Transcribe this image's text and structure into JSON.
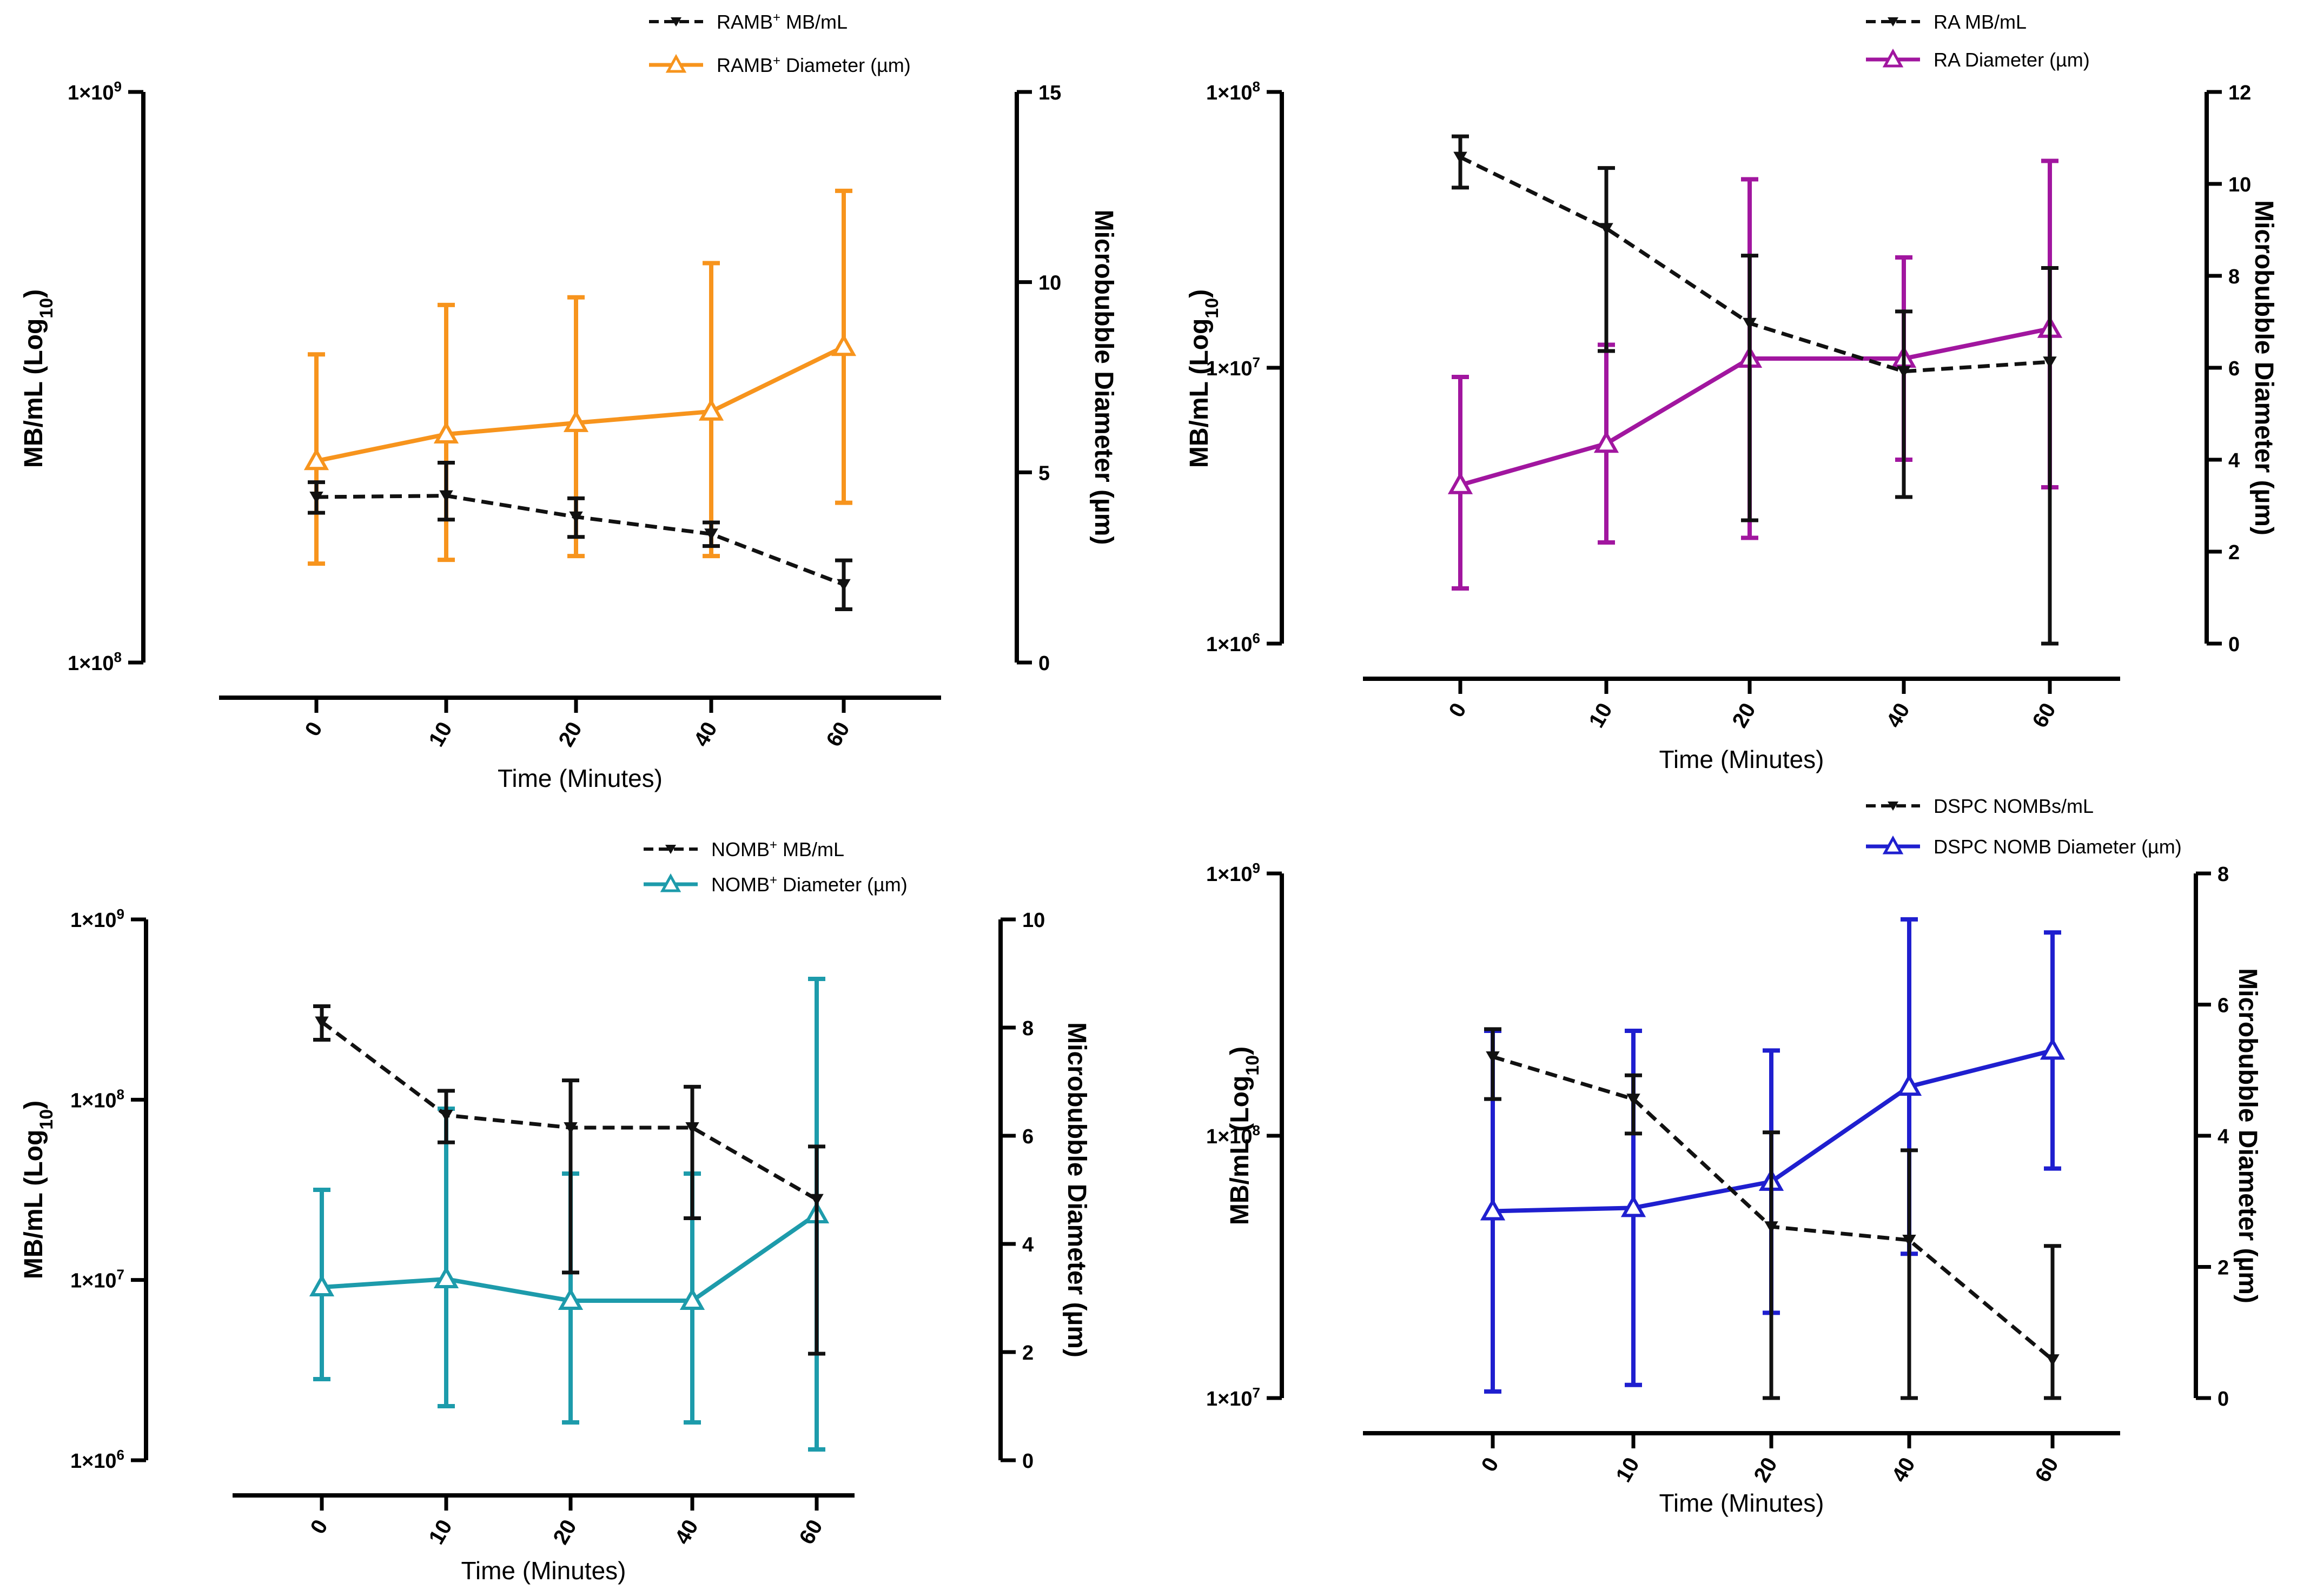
{
  "chart_data": [
    {
      "type": "line",
      "panel": "top-left",
      "title": "",
      "xlabel": "Time (Minutes)",
      "categories": [
        "0",
        "10",
        "20",
        "40",
        "60"
      ],
      "left_axis": {
        "label": "MB/mL (Log",
        "label_sub": "10",
        "label_end": ")",
        "scale": "log",
        "ylim": [
          100000000,
          1000000000
        ],
        "ticks": [
          {
            "v": 100000000,
            "m": "1×10",
            "e": "8"
          },
          {
            "v": 1000000000,
            "m": "1×10",
            "e": "9"
          }
        ]
      },
      "right_axis": {
        "label": "Microbubble Diameter (µm)",
        "scale": "linear",
        "ylim": [
          0,
          15
        ],
        "ticks": [
          0,
          5,
          10,
          15
        ]
      },
      "legend_position": "top-right",
      "series": [
        {
          "name": "RAMB",
          "name_sup": "+",
          "name_end": " MB/mL",
          "axis": "left",
          "color": "#111111",
          "style": "dashed",
          "marker": "down-triangle",
          "values": [
            195000000,
            196000000,
            180000000,
            168000000,
            137000000
          ],
          "err_low": [
            183000000,
            178000000,
            166000000,
            160000000,
            124000000
          ],
          "err_high": [
            207000000,
            224000000,
            194000000,
            176000000,
            151000000
          ]
        },
        {
          "name": "RAMB",
          "name_sup": "+",
          "name_end": " Diameter (µm)",
          "axis": "right",
          "color": "#f7941d",
          "style": "solid",
          "marker": "open-triangle",
          "values": [
            5.3,
            6.0,
            6.3,
            6.6,
            8.3
          ],
          "err_low": [
            2.6,
            2.7,
            2.8,
            2.8,
            4.2
          ],
          "err_high": [
            8.1,
            9.4,
            9.6,
            10.5,
            12.4
          ]
        }
      ]
    },
    {
      "type": "line",
      "panel": "top-right",
      "title": "",
      "xlabel": "Time (Minutes)",
      "categories": [
        "0",
        "10",
        "20",
        "40",
        "60"
      ],
      "left_axis": {
        "label": "MB/mL (Log",
        "label_sub": "10",
        "label_end": ")",
        "scale": "log",
        "ylim": [
          1000000,
          100000000
        ],
        "ticks": [
          {
            "v": 1000000,
            "m": "1×10",
            "e": "6"
          },
          {
            "v": 10000000,
            "m": "1×10",
            "e": "7"
          },
          {
            "v": 100000000,
            "m": "1×10",
            "e": "8"
          }
        ]
      },
      "right_axis": {
        "label": "Microbubble Diameter (µm)",
        "scale": "linear",
        "ylim": [
          0,
          12
        ],
        "ticks": [
          0,
          2,
          4,
          6,
          8,
          10,
          12
        ]
      },
      "legend_position": "top-right",
      "series": [
        {
          "name": "RA MB/mL",
          "name_sup": "",
          "name_end": "",
          "axis": "left",
          "color": "#111111",
          "style": "dashed",
          "marker": "down-triangle",
          "values": [
            58000000,
            32000000,
            14500000,
            9700000,
            10500000
          ],
          "err_low": [
            45000000,
            11500000,
            2800000,
            3400000,
            1000000
          ],
          "err_high": [
            69000000,
            53000000,
            25500000,
            16000000,
            23000000
          ]
        },
        {
          "name": "RA Diameter (µm)",
          "name_sup": "",
          "name_end": "",
          "axis": "right",
          "color": "#a1169f",
          "style": "solid",
          "marker": "open-triangle",
          "values": [
            3.45,
            4.35,
            6.2,
            6.2,
            6.85
          ],
          "err_low": [
            1.2,
            2.2,
            2.3,
            4.0,
            3.4
          ],
          "err_high": [
            5.8,
            6.5,
            10.1,
            8.4,
            10.5
          ]
        }
      ]
    },
    {
      "type": "line",
      "panel": "bottom-left",
      "title": "",
      "xlabel": "Time (Minutes)",
      "categories": [
        "0",
        "10",
        "20",
        "40",
        "60"
      ],
      "left_axis": {
        "label": "MB/mL (Log",
        "label_sub": "10",
        "label_end": ")",
        "scale": "log",
        "ylim": [
          1000000,
          1000000000
        ],
        "ticks": [
          {
            "v": 1000000,
            "m": "1×10",
            "e": "6"
          },
          {
            "v": 10000000,
            "m": "1×10",
            "e": "7"
          },
          {
            "v": 100000000,
            "m": "1×10",
            "e": "8"
          },
          {
            "v": 1000000000,
            "m": "1×10",
            "e": "9"
          }
        ]
      },
      "right_axis": {
        "label": "Microbubble Diameter (µm)",
        "scale": "linear",
        "ylim": [
          0,
          10
        ],
        "ticks": [
          0,
          2,
          4,
          6,
          8,
          10
        ]
      },
      "legend_position": "top-right",
      "series": [
        {
          "name": "NOMB",
          "name_sup": "+",
          "name_end": " MB/mL",
          "axis": "left",
          "color": "#111111",
          "style": "dashed",
          "marker": "down-triangle",
          "values": [
            270000000,
            82000000,
            70000000,
            70000000,
            28000000
          ],
          "err_low": [
            215000000,
            58000000,
            11000000,
            22000000,
            3900000
          ],
          "err_high": [
            330000000,
            112000000,
            128000000,
            118000000,
            55000000
          ]
        },
        {
          "name": "NOMB",
          "name_sup": "+",
          "name_end": " Diameter (µm)",
          "axis": "right",
          "color": "#1d9bab",
          "style": "solid",
          "marker": "open-triangle",
          "values": [
            3.2,
            3.35,
            2.95,
            2.95,
            4.55
          ],
          "err_low": [
            1.5,
            1.0,
            0.7,
            0.7,
            0.2
          ],
          "err_high": [
            5.0,
            6.5,
            5.3,
            5.3,
            8.9
          ]
        }
      ]
    },
    {
      "type": "line",
      "panel": "bottom-right",
      "title": "",
      "xlabel": "Time (Minutes)",
      "categories": [
        "0",
        "10",
        "20",
        "40",
        "60"
      ],
      "left_axis": {
        "label": "MB/mL (Log",
        "label_sub": "10",
        "label_end": ")",
        "scale": "log",
        "ylim": [
          10000000,
          1000000000
        ],
        "ticks": [
          {
            "v": 10000000,
            "m": "1×10",
            "e": "7"
          },
          {
            "v": 100000000,
            "m": "1×10",
            "e": "8"
          },
          {
            "v": 1000000000,
            "m": "1×10",
            "e": "9"
          }
        ]
      },
      "right_axis": {
        "label": "Microbubble Diameter (µm)",
        "scale": "linear",
        "ylim": [
          0,
          8
        ],
        "ticks": [
          0,
          2,
          4,
          6,
          8
        ]
      },
      "legend_position": "top-right",
      "series": [
        {
          "name": "DSPC NOMBs/mL",
          "name_sup": "",
          "name_end": "",
          "axis": "left",
          "color": "#111111",
          "style": "dashed",
          "marker": "down-triangle",
          "values": [
            200000000,
            138000000,
            45000000,
            40000000,
            14000000
          ],
          "err_low": [
            138000000,
            102000000,
            10000000,
            10000000,
            10000000
          ],
          "err_high": [
            255000000,
            170000000,
            103000000,
            88000000,
            38000000
          ]
        },
        {
          "name": "DSPC NOMB Diameter (µm)",
          "name_sup": "",
          "name_end": "",
          "axis": "right",
          "color": "#1f1fcf",
          "style": "solid",
          "marker": "open-triangle",
          "values": [
            2.85,
            2.9,
            3.3,
            4.75,
            5.3
          ],
          "err_low": [
            0.1,
            0.2,
            1.3,
            2.2,
            3.5
          ],
          "err_high": [
            5.6,
            5.6,
            5.3,
            7.3,
            7.1
          ]
        }
      ]
    }
  ]
}
